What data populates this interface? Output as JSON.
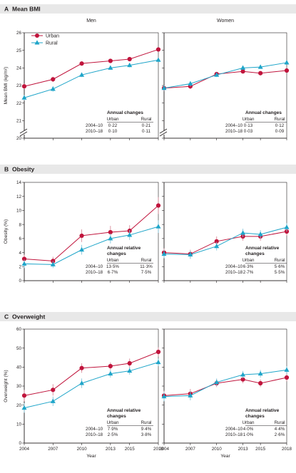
{
  "colors": {
    "urban": "#c0143c",
    "rural": "#1fa5c9",
    "urban_err": "#d98c9a",
    "rural_err": "#85c7dc",
    "band": "#e8e8e8",
    "ink": "#231f20"
  },
  "x_axis": {
    "label": "Year",
    "ticks": [
      2004,
      2007,
      2010,
      2013,
      2015,
      2018
    ]
  },
  "legend": [
    "Urban",
    "Rural"
  ],
  "columns": [
    "Men",
    "Women"
  ],
  "chart_data": [
    {
      "type": "line",
      "panel": "A",
      "title": "Mean BMI",
      "ylabel": "Mean BMI (kg/m²)",
      "ylim": [
        20,
        26
      ],
      "yticks": [
        20,
        21,
        22,
        23,
        24,
        25,
        26
      ],
      "axis_break": true,
      "x": [
        2004,
        2007,
        2010,
        2013,
        2015,
        2018
      ],
      "annotation": {
        "title": "Annual changes",
        "headers": [
          "Urban",
          "Rural"
        ],
        "rows": [
          {
            "label": "2004–10",
            "men": [
              "0·22",
              "0·21"
            ],
            "women": [
              "0·13",
              "0·12"
            ]
          },
          {
            "label": "2010–18",
            "men": [
              "0·10",
              "0·11"
            ],
            "women": [
              "0·03",
              "0·09"
            ]
          }
        ]
      },
      "men": [
        {
          "name": "Urban",
          "values": [
            22.95,
            23.35,
            24.25,
            24.4,
            24.5,
            25.05
          ],
          "err": [
            0.15,
            0.15,
            0.12,
            0.1,
            0.12,
            0.12
          ]
        },
        {
          "name": "Rural",
          "values": [
            22.3,
            22.8,
            23.6,
            24.0,
            24.15,
            24.45
          ],
          "err": [
            0.15,
            0.15,
            0.12,
            0.1,
            0.12,
            0.1
          ]
        }
      ],
      "women": [
        {
          "name": "Urban",
          "values": [
            22.85,
            22.95,
            23.65,
            23.8,
            23.7,
            23.85
          ],
          "err": [
            0.15,
            0.15,
            0.12,
            0.1,
            0.1,
            0.1
          ]
        },
        {
          "name": "Rural",
          "values": [
            22.85,
            23.1,
            23.6,
            24.0,
            24.05,
            24.3
          ],
          "err": [
            0.15,
            0.15,
            0.12,
            0.1,
            0.1,
            0.1
          ]
        }
      ]
    },
    {
      "type": "line",
      "panel": "B",
      "title": "Obesity",
      "ylabel": "Obesity (%)",
      "ylim": [
        0,
        14
      ],
      "yticks": [
        0,
        2,
        4,
        6,
        8,
        10,
        12,
        14
      ],
      "axis_break": false,
      "x": [
        2004,
        2007,
        2010,
        2013,
        2015,
        2018
      ],
      "annotation": {
        "title": "Annual relative changes",
        "headers": [
          "Urban",
          "Rural"
        ],
        "rows": [
          {
            "label": "2004–10",
            "men": [
              "13·5%",
              "11·3%"
            ],
            "women": [
              "6·3%",
              "5·6%"
            ]
          },
          {
            "label": "2010–18",
            "men": [
              "6·7%",
              "7·5%"
            ],
            "women": [
              "2·7%",
              "5·5%"
            ]
          }
        ]
      },
      "men": [
        {
          "name": "Urban",
          "values": [
            3.1,
            2.8,
            6.4,
            6.9,
            7.1,
            10.7
          ],
          "err": [
            0.6,
            0.6,
            0.9,
            0.9,
            0.8,
            1.2
          ]
        },
        {
          "name": "Rural",
          "values": [
            2.4,
            2.3,
            4.4,
            6.0,
            6.5,
            7.7
          ],
          "err": [
            0.6,
            0.5,
            0.7,
            0.7,
            0.7,
            0.9
          ]
        }
      ],
      "women": [
        {
          "name": "Urban",
          "values": [
            4.0,
            3.8,
            5.6,
            6.3,
            6.3,
            7.0
          ],
          "err": [
            0.6,
            0.6,
            0.7,
            0.6,
            0.6,
            0.6
          ]
        },
        {
          "name": "Rural",
          "values": [
            3.8,
            3.7,
            4.9,
            6.8,
            6.6,
            7.6
          ],
          "err": [
            0.6,
            0.6,
            0.6,
            0.6,
            0.6,
            0.6
          ]
        }
      ]
    },
    {
      "type": "line",
      "panel": "C",
      "title": "Overweight",
      "ylabel": "Overweight (%)",
      "ylim": [
        0,
        60
      ],
      "yticks": [
        0,
        10,
        20,
        30,
        40,
        50,
        60
      ],
      "axis_break": false,
      "x": [
        2004,
        2007,
        2010,
        2013,
        2015,
        2018
      ],
      "annotation": {
        "title": "Annual relative changes",
        "headers": [
          "Urban",
          "Rural"
        ],
        "rows": [
          {
            "label": "2004–10",
            "men": [
              "7·9%",
              "9·4%"
            ],
            "women": [
              "4·0%",
              "4·4%"
            ]
          },
          {
            "label": "2010–18",
            "men": [
              "2·5%",
              "3·8%"
            ],
            "women": [
              "1·0%",
              "2·6%"
            ]
          }
        ]
      },
      "men": [
        {
          "name": "Urban",
          "values": [
            25.0,
            28.0,
            39.5,
            40.5,
            42.0,
            48.0
          ],
          "err": [
            3.0,
            3.0,
            2.5,
            2.0,
            2.5,
            2.5
          ]
        },
        {
          "name": "Rural",
          "values": [
            18.5,
            22.0,
            31.5,
            36.5,
            38.0,
            42.5
          ],
          "err": [
            2.5,
            2.5,
            2.5,
            2.0,
            2.0,
            2.0
          ]
        }
      ],
      "women": [
        {
          "name": "Urban",
          "values": [
            25.0,
            26.0,
            31.5,
            33.5,
            31.5,
            34.5
          ],
          "err": [
            2.5,
            2.5,
            2.0,
            2.0,
            2.0,
            2.0
          ]
        },
        {
          "name": "Rural",
          "values": [
            24.5,
            25.0,
            32.0,
            36.0,
            36.5,
            38.5
          ],
          "err": [
            2.5,
            2.5,
            2.0,
            2.0,
            2.0,
            2.0
          ]
        }
      ]
    }
  ]
}
